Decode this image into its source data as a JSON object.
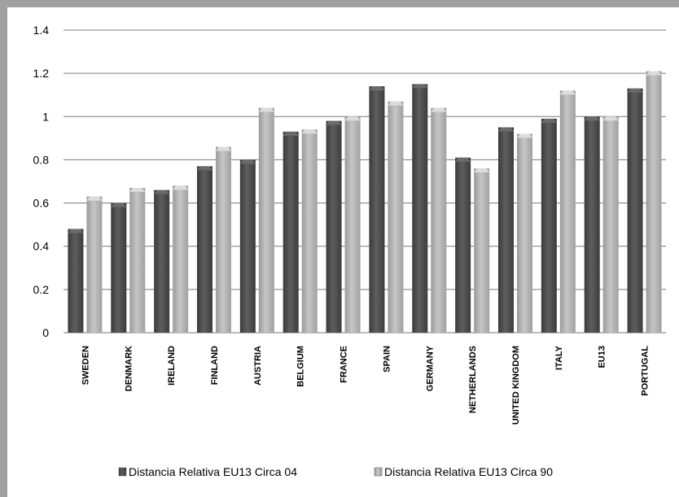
{
  "chart_data": {
    "type": "bar",
    "categories": [
      "SWEDEN",
      "DENMARK",
      "IRELAND",
      "FINLAND",
      "AUSTRIA",
      "BELGIUM",
      "FRANCE",
      "SPAIN",
      "GERMANY",
      "NETHERLANDS",
      "UNITED KINGDOM",
      "ITALY",
      "EU13",
      "PORTUGAL"
    ],
    "series": [
      {
        "name": "Distancia Relativa  EU13 Circa 04",
        "color": "#505050",
        "values": [
          0.48,
          0.6,
          0.66,
          0.77,
          0.8,
          0.93,
          0.98,
          1.14,
          1.15,
          0.81,
          0.95,
          0.99,
          1.0,
          1.13
        ]
      },
      {
        "name": "Distancia Relativa  EU13 Circa 90",
        "color": "#b4b4b4",
        "values": [
          0.63,
          0.67,
          0.68,
          0.86,
          1.04,
          0.94,
          1.0,
          1.07,
          1.04,
          0.76,
          0.92,
          1.12,
          1.0,
          1.21
        ]
      }
    ],
    "ylim": [
      0,
      1.4
    ],
    "yticks": [
      "0",
      "0.2",
      "0.4",
      "0.6",
      "0.8",
      "1",
      "1.2",
      "1.4"
    ],
    "grid": true,
    "legend_position": "bottom",
    "title": "",
    "xlabel": "",
    "ylabel": ""
  }
}
